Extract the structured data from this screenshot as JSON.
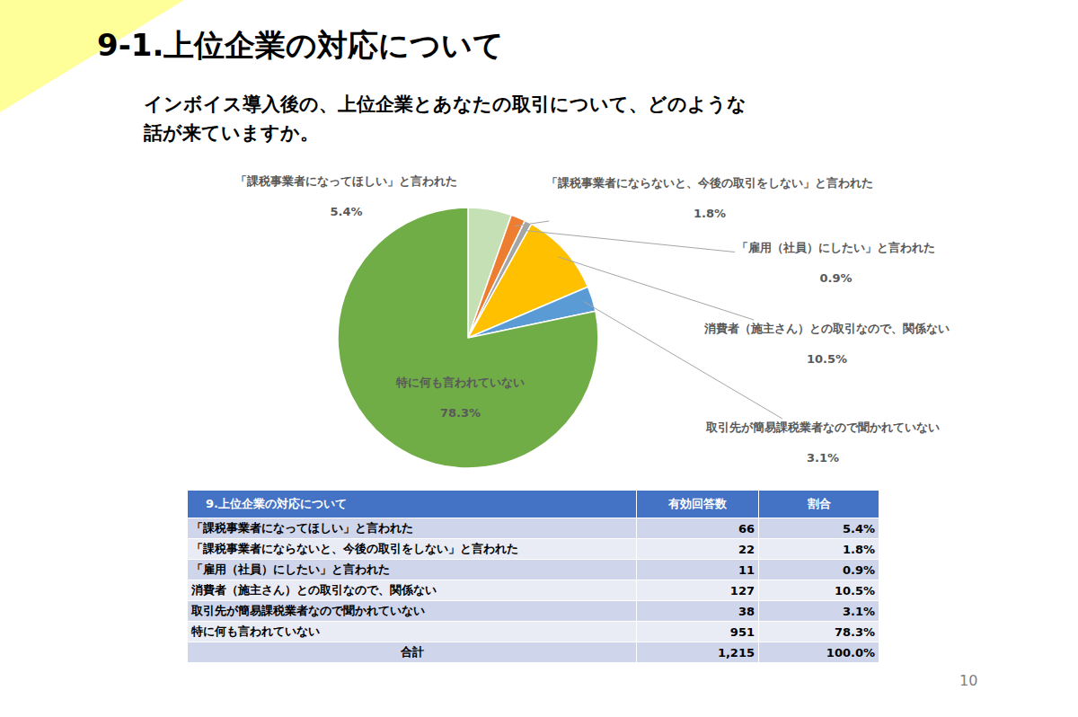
{
  "slide": {
    "title": "9-1.上位企業の対応について",
    "question": [
      "インボイス導入後の、上位企業とあなたの取引について、どのような",
      "話が来ていますか。"
    ],
    "page": "10"
  },
  "chart_data": {
    "type": "pie",
    "categories": [
      "「課税事業者になってほしい」と言われた",
      "「課税事業者にならないと、今後の取引をしない」と言われた",
      "「雇用（社員）にしたい」と言われた",
      "消費者（施主さん）との取引なので、関係ない",
      "取引先が簡易課税業者なので聞かれていない",
      "特に何も言われていない"
    ],
    "values": [
      5.4,
      1.8,
      0.9,
      10.5,
      3.1,
      78.3
    ],
    "value_labels": [
      "5.4%",
      "1.8%",
      "0.9%",
      "10.5%",
      "3.1%",
      "78.3%"
    ],
    "colors": [
      "#c5e0b4",
      "#ed7d31",
      "#a5a5a5",
      "#ffc000",
      "#5b9bd5",
      "#70ad47"
    ],
    "data_labels": true
  },
  "table": {
    "header": [
      "9.上位企業の対応について",
      "有効回答数",
      "割合"
    ],
    "rows": [
      [
        "「課税事業者になってほしい」と言われた",
        "66",
        "5.4%"
      ],
      [
        "「課税事業者にならないと、今後の取引をしない」と言われた",
        "22",
        "1.8%"
      ],
      [
        "「雇用（社員）にしたい」と言われた",
        "11",
        "0.9%"
      ],
      [
        "消費者（施主さん）との取引なので、関係ない",
        "127",
        "10.5%"
      ],
      [
        "取引先が簡易課税業者なので聞かれていない",
        "38",
        "3.1%"
      ],
      [
        "特に何も言われていない",
        "951",
        "78.3%"
      ]
    ],
    "total": [
      "合計",
      "1,215",
      "100.0%"
    ]
  }
}
